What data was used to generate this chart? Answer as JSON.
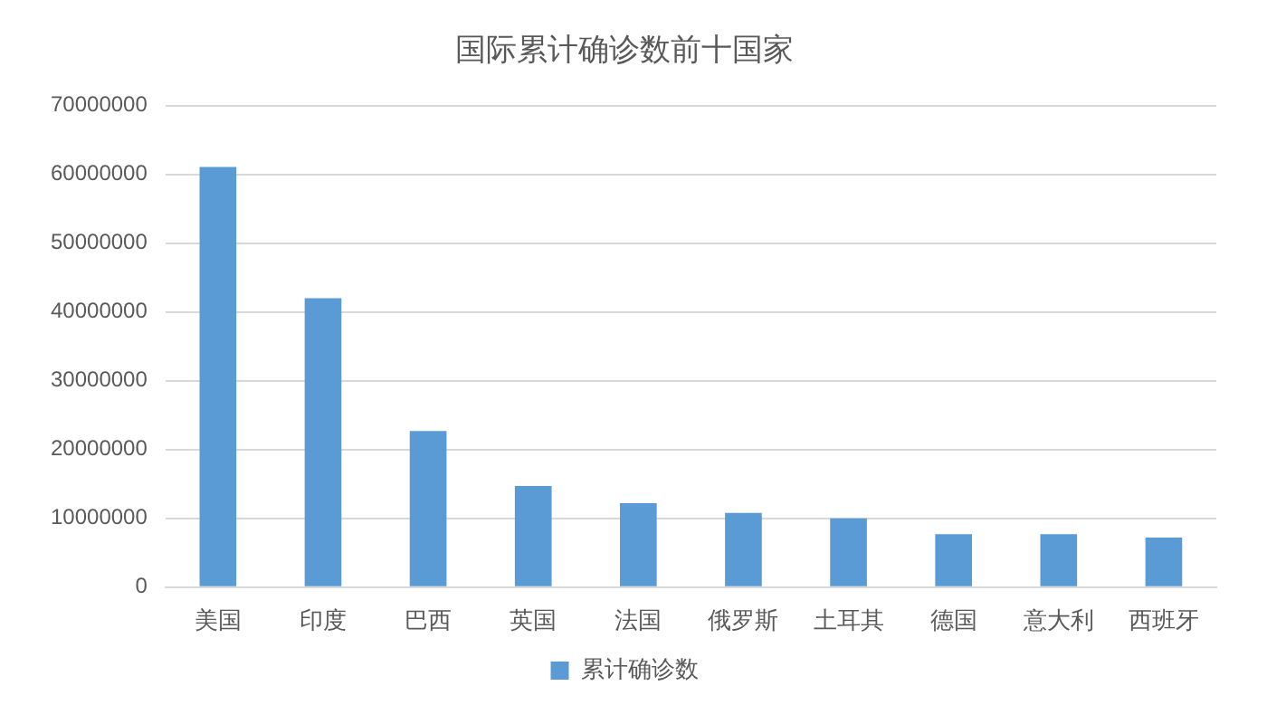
{
  "chart_data": {
    "type": "bar",
    "title": "国际累计确诊数前十国家",
    "categories": [
      "美国",
      "印度",
      "巴西",
      "英国",
      "法国",
      "俄罗斯",
      "土耳其",
      "德国",
      "意大利",
      "西班牙"
    ],
    "series": [
      {
        "name": "累计确诊数",
        "color": "#5b9bd5",
        "values": [
          61100000,
          42000000,
          22700000,
          14700000,
          12200000,
          10800000,
          10000000,
          7700000,
          7700000,
          7200000
        ]
      }
    ],
    "ylim": [
      0,
      70000000
    ],
    "yticks": [
      0,
      10000000,
      20000000,
      30000000,
      40000000,
      50000000,
      60000000,
      70000000
    ],
    "grid": "y",
    "legend": "bottom"
  }
}
